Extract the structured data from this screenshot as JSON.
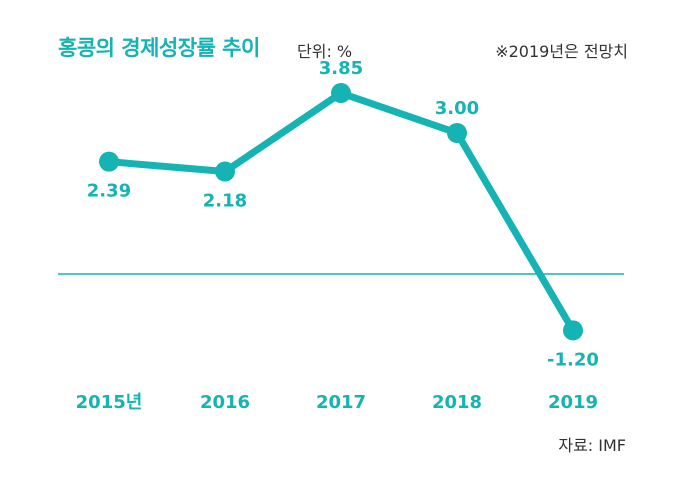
{
  "header": {
    "title": "홍콩의 경제성장률 추이",
    "unit": "단위: %",
    "note": "※2019년은 전망치"
  },
  "footer": {
    "source": "자료: IMF"
  },
  "colors": {
    "line": "#15b3b3",
    "baseline": "#15b3b3",
    "labels": "#15b3b3",
    "text": "#333333"
  },
  "chart_data": {
    "type": "line",
    "title": "홍콩의 경제성장률 추이",
    "unit": "단위: %",
    "categories": [
      "2015년",
      "2016",
      "2017",
      "2018",
      "2019"
    ],
    "values": [
      2.39,
      2.18,
      3.85,
      3.0,
      -1.2
    ],
    "value_labels": [
      "2.39",
      "2.18",
      "3.85",
      "3.00",
      "-1.20"
    ],
    "baseline": 0,
    "grid": false,
    "legend": "none"
  }
}
